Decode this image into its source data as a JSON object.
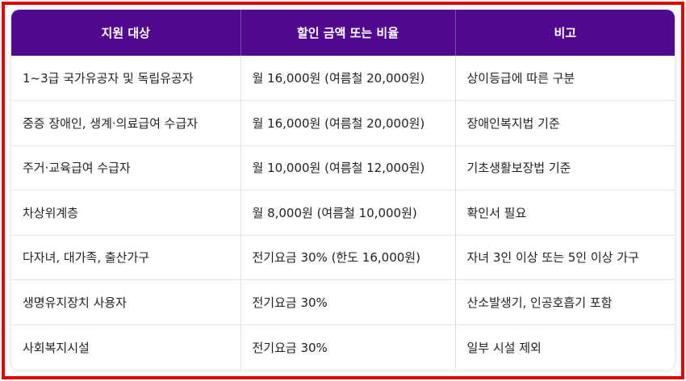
{
  "table": {
    "headers": [
      "지원 대상",
      "할인 금액 또는 비율",
      "비고"
    ],
    "rows": [
      [
        "1~3급 국가유공자 및 독립유공자",
        "월 16,000원 (여름철 20,000원)",
        "상이등급에 따른 구분"
      ],
      [
        "중증 장애인, 생계·의료급여 수급자",
        "월 16,000원 (여름철 20,000원)",
        "장애인복지법 기준"
      ],
      [
        "주거·교육급여 수급자",
        "월 10,000원 (여름철 12,000원)",
        "기초생활보장법 기준"
      ],
      [
        "차상위계층",
        "월 8,000원 (여름철 10,000원)",
        "확인서 필요"
      ],
      [
        "다자녀, 대가족, 출산가구",
        "전기요금 30% (한도 16,000원)",
        "자녀 3인 이상 또는 5인 이상 가구"
      ],
      [
        "생명유지장치 사용자",
        "전기요금 30%",
        "산소발생기, 인공호흡기 포함"
      ],
      [
        "사회복지시설",
        "전기요금 30%",
        "일부 시설 제외"
      ]
    ]
  },
  "colors": {
    "header_bg": "#4f0a8f",
    "frame_border": "#e00000"
  }
}
